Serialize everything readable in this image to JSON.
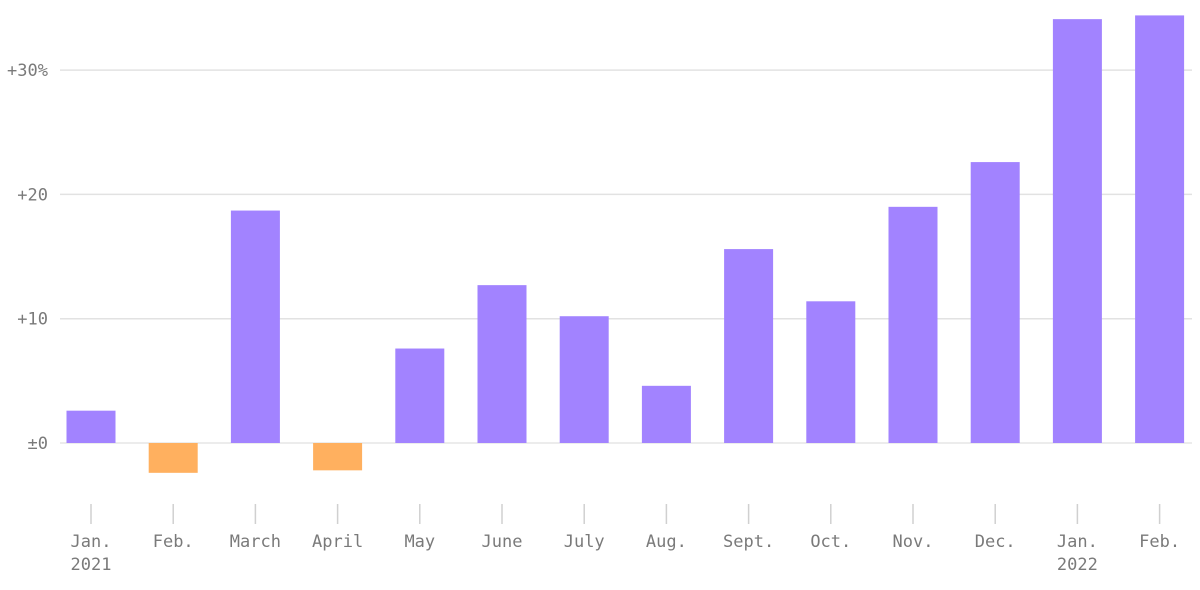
{
  "chart_data": {
    "type": "bar",
    "categories": [
      "Jan.",
      "Feb.",
      "March",
      "April",
      "May",
      "June",
      "July",
      "Aug.",
      "Sept.",
      "Oct.",
      "Nov.",
      "Dec.",
      "Jan.",
      "Feb."
    ],
    "year_labels": [
      "2021",
      "",
      "",
      "",
      "",
      "",
      "",
      "",
      "",
      "",
      "",
      "",
      "2022",
      ""
    ],
    "values": [
      2.6,
      -2.4,
      18.7,
      -2.2,
      7.6,
      12.7,
      10.2,
      4.6,
      15.6,
      11.4,
      19.0,
      22.6,
      34.1,
      34.4
    ],
    "y_ticks": [
      0,
      10,
      20,
      30
    ],
    "y_tick_labels": [
      "±0",
      "+10",
      "+20",
      "+30%"
    ],
    "ylim": [
      -5,
      35
    ],
    "grid": true,
    "colors": {
      "positive": "#a283ff",
      "negative": "#ffb05f"
    }
  }
}
